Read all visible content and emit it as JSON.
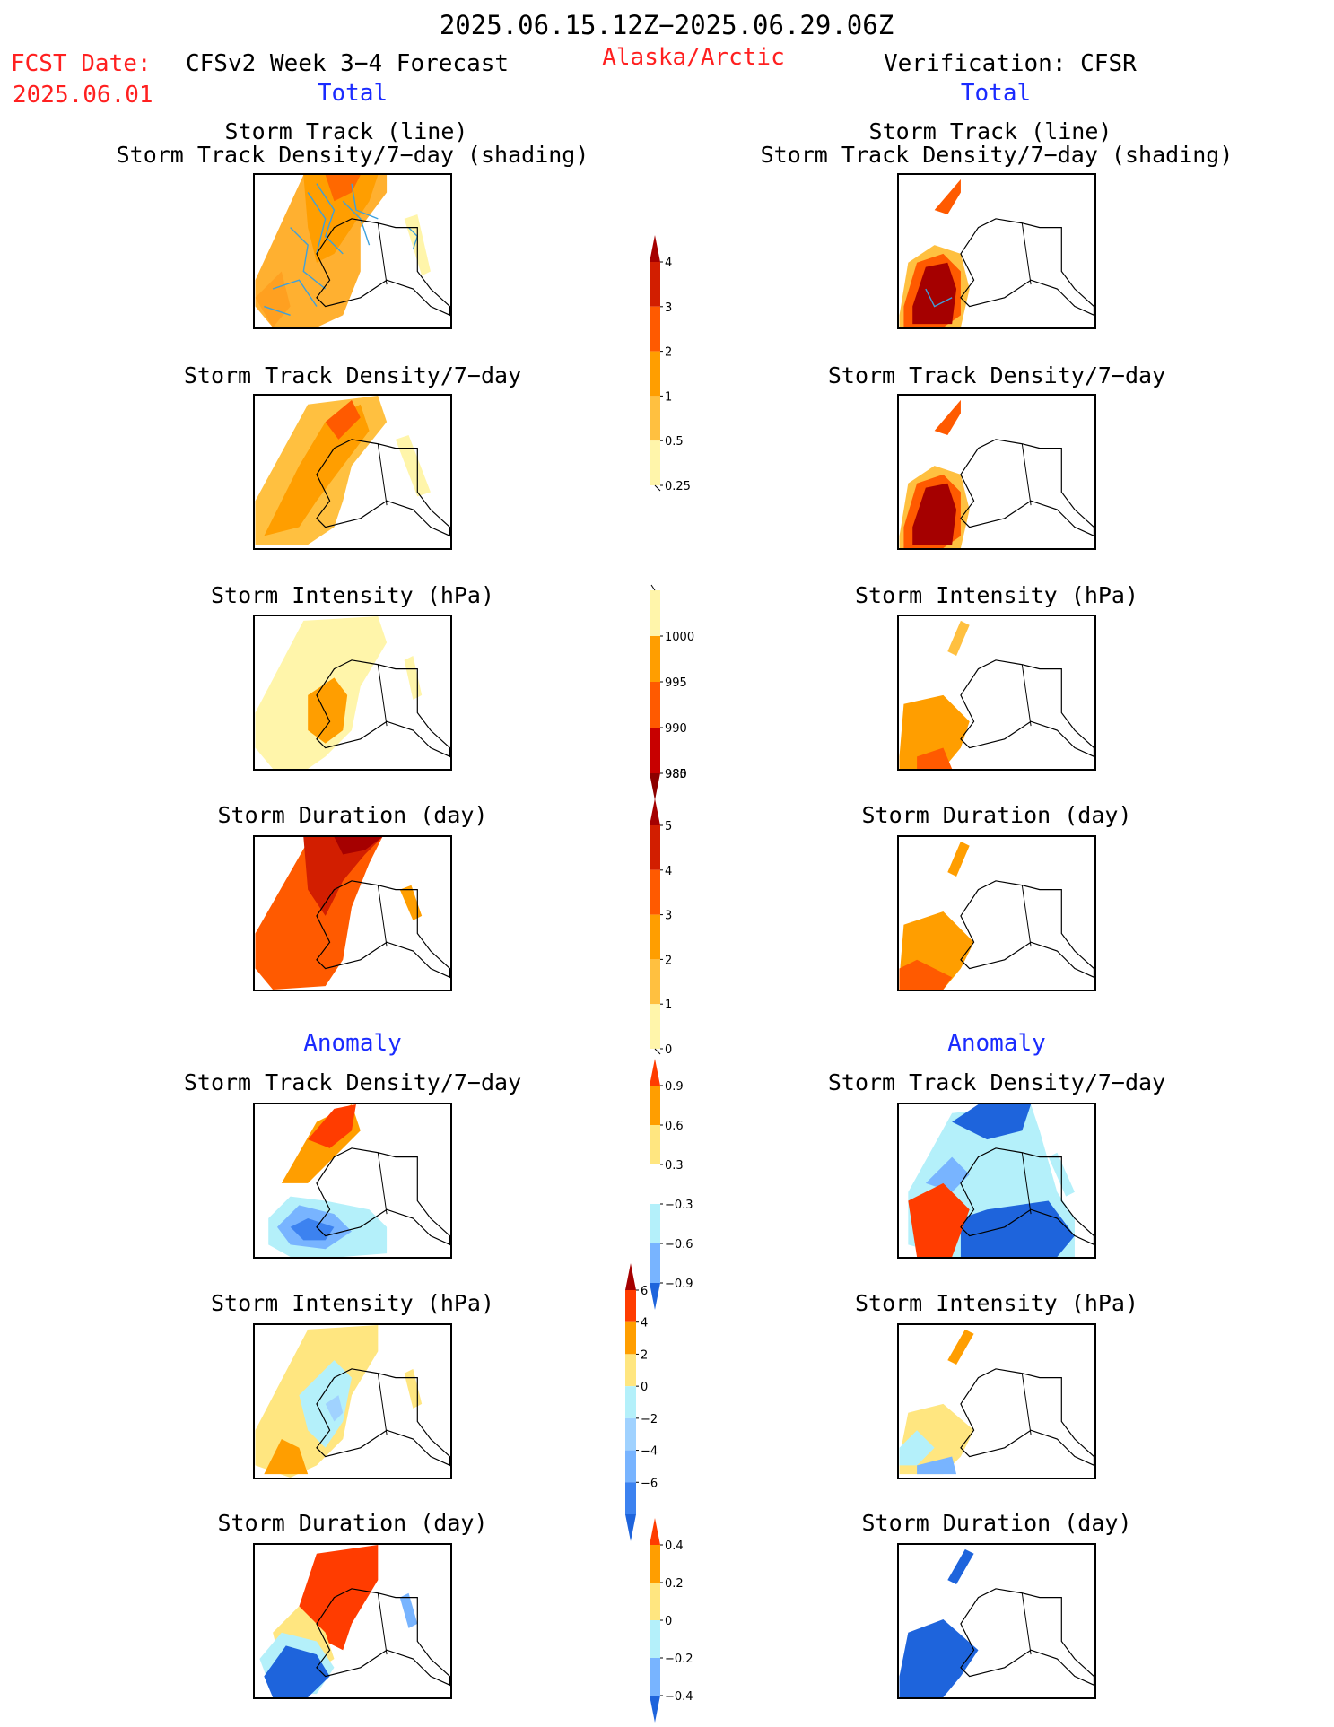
{
  "header": {
    "date_range": "2025.06.15.12Z−2025.06.29.06Z",
    "fcst_date_label": "FCST Date:",
    "fcst_date_value": "2025.06.01",
    "forecast_title": "CFSv2 Week 3−4 Forecast",
    "region": "Alaska/Arctic",
    "verification": "Verification: CFSR"
  },
  "sections": {
    "total_left": "Total",
    "total_right": "Total",
    "anomaly_left": "Anomaly",
    "anomaly_right": "Anomaly"
  },
  "panel_titles": {
    "track_line": "Storm Track (line)",
    "track_shading": "Storm Track Density/7−day (shading)",
    "density": "Storm Track Density/7−day",
    "intensity": "Storm Intensity (hPa)",
    "duration": "Storm Duration (day)"
  },
  "colorbars": {
    "density_total": {
      "ticks": [
        "4",
        "3",
        "2",
        "1",
        "0.5",
        "0.25"
      ],
      "colors": [
        "#a50000",
        "#d21e00",
        "#ff5a00",
        "#ff9e00",
        "#ffc040",
        "#fff5aa"
      ]
    },
    "intensity_total": {
      "ticks": [
        "1000",
        "995",
        "990",
        "985",
        "980"
      ],
      "colors": [
        "#fff5aa",
        "#ff9e00",
        "#ff5a00",
        "#c80000",
        "#8c0000"
      ]
    },
    "duration_total": {
      "ticks": [
        "5",
        "4",
        "3",
        "2",
        "1",
        "0"
      ],
      "colors": [
        "#a50000",
        "#d21e00",
        "#ff5a00",
        "#ff9e00",
        "#ffc040",
        "#fff5aa"
      ]
    },
    "density_anom": {
      "ticks": [
        "0.9",
        "0.6",
        "0.3",
        "−0.3",
        "−0.6",
        "−0.9"
      ],
      "colors": [
        "#ff3c00",
        "#ff9e00",
        "#ffe680",
        "#ffffff",
        "#b4f0fa",
        "#78b4ff",
        "#1e64dc"
      ]
    },
    "intensity_anom": {
      "ticks": [
        "6",
        "4",
        "2",
        "0",
        "−2",
        "−4",
        "−6"
      ],
      "colors": [
        "#a50000",
        "#ff3c00",
        "#ff9e00",
        "#ffe680",
        "#b4f0fa",
        "#a0d2ff",
        "#78b4ff",
        "#3c82f0",
        "#1e64dc"
      ]
    },
    "duration_anom": {
      "ticks": [
        "0.4",
        "0.2",
        "0",
        "−0.2",
        "−0.4"
      ],
      "colors": [
        "#ff3c00",
        "#ff9e00",
        "#ffe680",
        "#b4f0fa",
        "#78b4ff",
        "#1e64dc"
      ]
    }
  },
  "map_colors": {
    "land_line": "#000000",
    "track_line": "#3ca0dc"
  }
}
